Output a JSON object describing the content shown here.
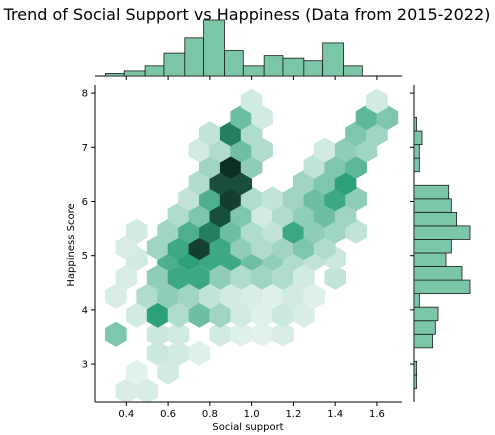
{
  "chart_data": {
    "type": "heatmap",
    "subtype": "hexbin-joint",
    "title": "Trend of Social Support vs Happiness (Data from 2015-2022)",
    "xlabel": "Social support",
    "ylabel": "Happiness Score",
    "xlim": [
      0.25,
      1.72
    ],
    "ylim": [
      2.3,
      8.15
    ],
    "xticks": [
      "0.4",
      "0.6",
      "0.8",
      "1.0",
      "1.2",
      "1.4",
      "1.6"
    ],
    "yticks": [
      "3",
      "4",
      "5",
      "6",
      "7",
      "8"
    ],
    "xtick_values": [
      0.4,
      0.6,
      0.8,
      1.0,
      1.2,
      1.4,
      1.6
    ],
    "ytick_values": [
      3,
      4,
      5,
      6,
      7,
      8
    ],
    "colors": {
      "hex_base": "#2ca07a",
      "hex_dark": "#0b1f17",
      "hist_fill": "#7cc6a8",
      "hist_edge": "#1a1a1a",
      "axis": "#000000"
    },
    "hexbin": {
      "hex_radius_x": 0.052,
      "cells": [
        [
          0.4,
          2.5,
          0.08
        ],
        [
          0.5,
          2.5,
          0.08
        ],
        [
          0.6,
          2.85,
          0.1
        ],
        [
          0.45,
          2.85,
          0.05
        ],
        [
          0.55,
          3.2,
          0.12
        ],
        [
          0.65,
          3.2,
          0.1
        ],
        [
          0.75,
          3.2,
          0.06
        ],
        [
          0.35,
          3.55,
          0.35
        ],
        [
          0.55,
          3.55,
          0.12
        ],
        [
          0.65,
          3.55,
          0.1
        ],
        [
          0.85,
          3.55,
          0.1
        ],
        [
          0.95,
          3.55,
          0.06
        ],
        [
          1.05,
          3.55,
          0.05
        ],
        [
          1.15,
          3.55,
          0.08
        ],
        [
          0.45,
          3.9,
          0.1
        ],
        [
          0.55,
          3.9,
          0.6
        ],
        [
          0.65,
          3.9,
          0.2
        ],
        [
          0.75,
          3.9,
          0.4
        ],
        [
          0.85,
          3.9,
          0.25
        ],
        [
          0.95,
          3.9,
          0.1
        ],
        [
          1.05,
          3.9,
          0.06
        ],
        [
          1.15,
          3.9,
          0.12
        ],
        [
          1.25,
          3.9,
          0.08
        ],
        [
          0.35,
          4.25,
          0.08
        ],
        [
          0.5,
          4.25,
          0.2
        ],
        [
          0.6,
          4.25,
          0.3
        ],
        [
          0.7,
          4.25,
          0.25
        ],
        [
          0.8,
          4.25,
          0.15
        ],
        [
          0.9,
          4.25,
          0.1
        ],
        [
          1.0,
          4.25,
          0.08
        ],
        [
          1.1,
          4.25,
          0.06
        ],
        [
          1.2,
          4.25,
          0.1
        ],
        [
          1.3,
          4.25,
          0.06
        ],
        [
          0.4,
          4.6,
          0.08
        ],
        [
          0.55,
          4.6,
          0.3
        ],
        [
          0.65,
          4.6,
          0.55
        ],
        [
          0.75,
          4.6,
          0.55
        ],
        [
          0.85,
          4.6,
          0.3
        ],
        [
          0.95,
          4.6,
          0.2
        ],
        [
          1.05,
          4.6,
          0.25
        ],
        [
          1.15,
          4.6,
          0.2
        ],
        [
          1.25,
          4.6,
          0.1
        ],
        [
          1.4,
          4.6,
          0.15
        ],
        [
          0.45,
          4.95,
          0.1
        ],
        [
          0.6,
          4.95,
          0.5
        ],
        [
          0.7,
          4.95,
          0.6
        ],
        [
          0.8,
          4.95,
          0.55
        ],
        [
          0.9,
          4.95,
          0.55
        ],
        [
          1.0,
          4.95,
          0.4
        ],
        [
          1.1,
          4.95,
          0.3
        ],
        [
          1.2,
          4.95,
          0.2
        ],
        [
          1.3,
          4.95,
          0.15
        ],
        [
          1.4,
          4.95,
          0.12
        ],
        [
          0.4,
          5.15,
          0.08
        ],
        [
          0.55,
          5.15,
          0.25
        ],
        [
          0.65,
          5.15,
          0.55
        ],
        [
          0.75,
          5.15,
          0.9
        ],
        [
          0.85,
          5.15,
          0.55
        ],
        [
          0.95,
          5.15,
          0.3
        ],
        [
          1.05,
          5.15,
          0.2
        ],
        [
          1.15,
          5.15,
          0.25
        ],
        [
          1.25,
          5.15,
          0.35
        ],
        [
          1.35,
          5.15,
          0.2
        ],
        [
          0.45,
          5.45,
          0.1
        ],
        [
          0.6,
          5.45,
          0.25
        ],
        [
          0.7,
          5.45,
          0.5
        ],
        [
          0.8,
          5.45,
          0.7
        ],
        [
          0.9,
          5.45,
          0.4
        ],
        [
          1.0,
          5.45,
          0.2
        ],
        [
          1.1,
          5.45,
          0.15
        ],
        [
          1.2,
          5.45,
          0.55
        ],
        [
          1.3,
          5.45,
          0.3
        ],
        [
          1.4,
          5.45,
          0.25
        ],
        [
          1.5,
          5.45,
          0.15
        ],
        [
          0.65,
          5.75,
          0.2
        ],
        [
          0.75,
          5.75,
          0.35
        ],
        [
          0.85,
          5.75,
          0.85
        ],
        [
          0.95,
          5.75,
          0.35
        ],
        [
          1.05,
          5.75,
          0.1
        ],
        [
          1.15,
          5.75,
          0.2
        ],
        [
          1.25,
          5.75,
          0.3
        ],
        [
          1.35,
          5.75,
          0.4
        ],
        [
          1.45,
          5.75,
          0.25
        ],
        [
          0.7,
          6.05,
          0.15
        ],
        [
          0.8,
          6.05,
          0.5
        ],
        [
          0.9,
          6.05,
          0.9
        ],
        [
          1.0,
          6.05,
          0.2
        ],
        [
          1.1,
          6.05,
          0.15
        ],
        [
          1.2,
          6.05,
          0.25
        ],
        [
          1.3,
          6.05,
          0.4
        ],
        [
          1.4,
          6.05,
          0.55
        ],
        [
          1.5,
          6.05,
          0.3
        ],
        [
          0.75,
          6.35,
          0.2
        ],
        [
          0.85,
          6.35,
          0.85
        ],
        [
          0.95,
          6.35,
          0.85
        ],
        [
          1.25,
          6.35,
          0.25
        ],
        [
          1.35,
          6.35,
          0.35
        ],
        [
          1.45,
          6.35,
          0.6
        ],
        [
          0.8,
          6.65,
          0.25
        ],
        [
          0.9,
          6.65,
          0.95
        ],
        [
          1.0,
          6.65,
          0.3
        ],
        [
          1.3,
          6.65,
          0.15
        ],
        [
          1.4,
          6.65,
          0.35
        ],
        [
          1.5,
          6.65,
          0.45
        ],
        [
          0.75,
          6.95,
          0.1
        ],
        [
          0.85,
          6.95,
          0.2
        ],
        [
          0.95,
          6.95,
          0.4
        ],
        [
          1.05,
          6.95,
          0.2
        ],
        [
          1.35,
          6.95,
          0.1
        ],
        [
          1.45,
          6.95,
          0.3
        ],
        [
          1.55,
          6.95,
          0.25
        ],
        [
          0.8,
          7.25,
          0.15
        ],
        [
          0.9,
          7.25,
          0.7
        ],
        [
          1.0,
          7.25,
          0.2
        ],
        [
          1.5,
          7.25,
          0.35
        ],
        [
          1.6,
          7.25,
          0.25
        ],
        [
          0.95,
          7.55,
          0.4
        ],
        [
          1.05,
          7.55,
          0.1
        ],
        [
          1.55,
          7.55,
          0.45
        ],
        [
          1.65,
          7.55,
          0.35
        ],
        [
          1.0,
          7.85,
          0.1
        ],
        [
          1.6,
          7.85,
          0.1
        ]
      ]
    },
    "marginal_x": {
      "bin_edges": [
        0.3,
        0.39,
        0.49,
        0.58,
        0.68,
        0.77,
        0.87,
        0.96,
        1.06,
        1.15,
        1.25,
        1.34,
        1.44,
        1.53,
        1.63
      ],
      "counts": [
        1,
        2,
        4,
        9,
        15,
        22,
        10,
        4,
        8,
        7,
        6,
        13,
        4,
        0
      ]
    },
    "marginal_y": {
      "bin_edges": [
        2.55,
        2.8,
        3.05,
        3.3,
        3.55,
        3.8,
        4.05,
        4.3,
        4.55,
        4.8,
        5.05,
        5.3,
        5.55,
        5.8,
        6.05,
        6.3,
        6.55,
        6.8,
        7.05,
        7.3,
        7.55
      ],
      "counts": [
        1,
        1,
        0,
        7,
        8,
        9,
        2,
        21,
        18,
        12,
        14,
        21,
        16,
        14,
        13,
        0,
        2,
        2,
        3,
        1
      ]
    }
  }
}
